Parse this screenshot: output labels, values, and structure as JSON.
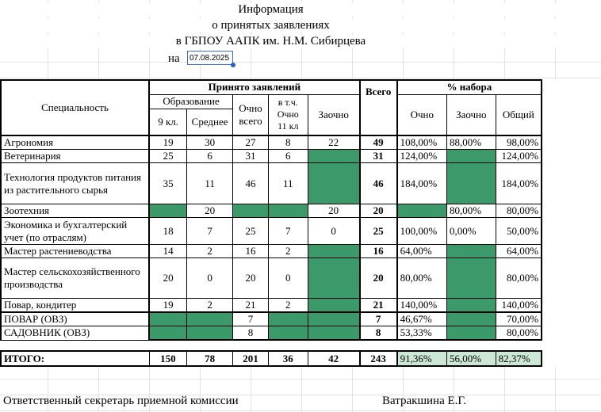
{
  "header": {
    "line1": "Информация",
    "line2": "о принятых заявлениях",
    "line3": "в ГБПОУ ААПК им. Н.М. Сибирцева",
    "date_label": "на",
    "date_value": "07.08.2025"
  },
  "columns": {
    "specialty": "Специальность",
    "accepted": "Принято заявлений",
    "education": "Образование",
    "grade9": "9 кл.",
    "secondary": "Среднее",
    "fulltime_total": "Очно всего",
    "incl_line1": "в т.ч.",
    "incl_line2": "Очно",
    "incl_line3": "11 кл",
    "extramural": "Заочно",
    "total": "Всего",
    "percent": "% набора",
    "pct_fulltime": "Очно",
    "pct_extramural": "Заочно",
    "pct_overall": "Общий"
  },
  "rows": [
    {
      "name": "Агрономия",
      "g9": "19",
      "sec": "30",
      "ft": "27",
      "ft11": "8",
      "ext": "22",
      "total": "49",
      "p_ft": "108,00%",
      "p_ext": "88,00%",
      "p_all": "98,00%"
    },
    {
      "name": "Ветеринария",
      "g9": "25",
      "sec": "6",
      "ft": "31",
      "ft11": "6",
      "ext": "",
      "total": "31",
      "p_ft": "124,00%",
      "p_ext": "",
      "p_all": "124,00%"
    },
    {
      "name": "Технология продуктов питания из растительного сырья",
      "g9": "35",
      "sec": "11",
      "ft": "46",
      "ft11": "11",
      "ext": "",
      "total": "46",
      "p_ft": "184,00%",
      "p_ext": "",
      "p_all": "184,00%"
    },
    {
      "name": "Зоотехния",
      "g9": "",
      "sec": "20",
      "ft": "",
      "ft11": "",
      "ext": "20",
      "total": "20",
      "p_ft": "",
      "p_ext": "80,00%",
      "p_all": "80,00%"
    },
    {
      "name": "Экономика и бухгалтерский учет (по отраслям)",
      "g9": "18",
      "sec": "7",
      "ft": "25",
      "ft11": "7",
      "ext": "0",
      "total": "25",
      "p_ft": "100,00%",
      "p_ext": "0,00%",
      "p_all": "50,00%"
    },
    {
      "name": "Мастер растениеводства",
      "g9": "14",
      "sec": "2",
      "ft": "16",
      "ft11": "2",
      "ext": "",
      "total": "16",
      "p_ft": "64,00%",
      "p_ext": "",
      "p_all": "64,00%"
    },
    {
      "name": "Мастер сельскохозяйственного производства",
      "g9": "20",
      "sec": "0",
      "ft": "20",
      "ft11": "0",
      "ext": "",
      "total": "20",
      "p_ft": "80,00%",
      "p_ext": "",
      "p_all": "80,00%"
    },
    {
      "name": "Повар, кондитер",
      "g9": "19",
      "sec": "2",
      "ft": "21",
      "ft11": "2",
      "ext": "",
      "total": "21",
      "p_ft": "140,00%",
      "p_ext": "",
      "p_all": "140,00%"
    },
    {
      "name": "ПОВАР (ОВЗ)",
      "g9": "",
      "sec": "",
      "ft": "7",
      "ft11": "",
      "ext": "",
      "total": "7",
      "p_ft": "46,67%",
      "p_ext": "",
      "p_all": "70,00%"
    },
    {
      "name": "САДОВНИК (ОВЗ)",
      "g9": "",
      "sec": "",
      "ft": "8",
      "ft11": "",
      "ext": "",
      "total": "8",
      "p_ft": "53,33%",
      "p_ext": "",
      "p_all": "80,00%"
    }
  ],
  "totals": {
    "name": "ИТОГО:",
    "g9": "150",
    "sec": "78",
    "ft": "201",
    "ft11": "36",
    "ext": "42",
    "total": "243",
    "p_ft": "91,36%",
    "p_ext": "56,00%",
    "p_all": "82,37%"
  },
  "footer": {
    "signer_title": "Ответственный секретарь  приемной комиссии",
    "signer_name": "Ватракшина Е.Г."
  },
  "colors": {
    "filled_cell": "#3c9a6a",
    "total_pct_cell": "#cce8d5"
  }
}
